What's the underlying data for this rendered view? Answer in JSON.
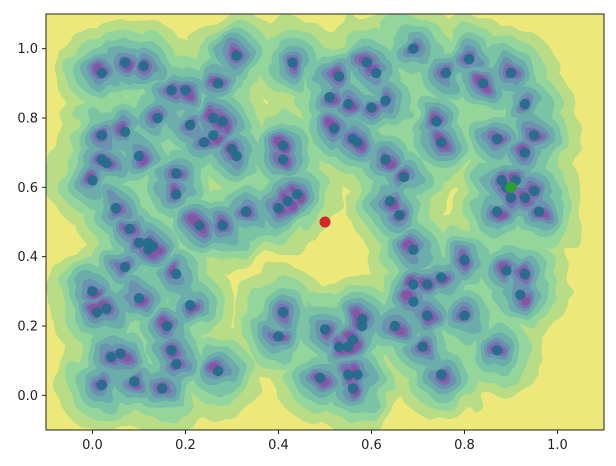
{
  "chart_data": {
    "type": "scatter",
    "title": "",
    "xlabel": "",
    "ylabel": "",
    "xlim": [
      -0.1,
      1.1
    ],
    "ylim": [
      -0.1,
      1.1
    ],
    "x_ticks": [
      "0.0",
      "0.2",
      "0.4",
      "0.6",
      "0.8",
      "1.0"
    ],
    "y_ticks": [
      "0.0",
      "0.2",
      "0.4",
      "0.6",
      "0.8",
      "1.0"
    ],
    "x_tick_values": [
      0.0,
      0.2,
      0.4,
      0.6,
      0.8,
      1.0
    ],
    "y_tick_values": [
      0.0,
      0.2,
      0.4,
      0.6,
      0.8,
      1.0
    ],
    "grid": false,
    "background": "filled contour (density), viridis colormap",
    "colors": {
      "contour_levels": [
        "#ece97a",
        "#b8dd86",
        "#8ed4a0",
        "#76c2a7",
        "#6aa9ad",
        "#6a8fb0",
        "#7b6bb0",
        "#8a4fa3"
      ],
      "points": "#1f6f8b",
      "highlight_green": "#2ca02c",
      "highlight_red": "#d62728"
    },
    "series": [
      {
        "values": [
          [
            0.02,
            0.93
          ],
          [
            0.07,
            0.96
          ],
          [
            0.11,
            0.95
          ],
          [
            0.17,
            0.88
          ],
          [
            0.2,
            0.88
          ],
          [
            0.27,
            0.9
          ],
          [
            0.3,
            0.71
          ],
          [
            0.14,
            0.8
          ],
          [
            0.21,
            0.78
          ],
          [
            0.24,
            0.73
          ],
          [
            0.26,
            0.75
          ],
          [
            0.26,
            0.8
          ],
          [
            0.28,
            0.79
          ],
          [
            0.31,
            0.69
          ],
          [
            0.02,
            0.75
          ],
          [
            0.02,
            0.68
          ],
          [
            0.03,
            0.67
          ],
          [
            0.07,
            0.76
          ],
          [
            0.1,
            0.69
          ],
          [
            0.0,
            0.62
          ],
          [
            0.05,
            0.54
          ],
          [
            0.18,
            0.58
          ],
          [
            0.18,
            0.64
          ],
          [
            0.23,
            0.49
          ],
          [
            0.33,
            0.53
          ],
          [
            0.08,
            0.48
          ],
          [
            0.1,
            0.44
          ],
          [
            0.12,
            0.44
          ],
          [
            0.12,
            0.42
          ],
          [
            0.13,
            0.43
          ],
          [
            0.07,
            0.37
          ],
          [
            0.18,
            0.35
          ],
          [
            0.0,
            0.3
          ],
          [
            0.01,
            0.24
          ],
          [
            0.03,
            0.25
          ],
          [
            0.1,
            0.28
          ],
          [
            0.16,
            0.2
          ],
          [
            0.17,
            0.13
          ],
          [
            0.21,
            0.26
          ],
          [
            0.04,
            0.11
          ],
          [
            0.06,
            0.12
          ],
          [
            0.09,
            0.04
          ],
          [
            0.15,
            0.02
          ],
          [
            0.18,
            0.09
          ],
          [
            0.27,
            0.07
          ],
          [
            0.02,
            0.03
          ],
          [
            0.41,
            0.72
          ],
          [
            0.41,
            0.68
          ],
          [
            0.42,
            0.56
          ],
          [
            0.44,
            0.58
          ],
          [
            0.4,
            0.54
          ],
          [
            0.51,
            0.86
          ],
          [
            0.52,
            0.77
          ],
          [
            0.43,
            0.96
          ],
          [
            0.53,
            0.92
          ],
          [
            0.59,
            0.96
          ],
          [
            0.61,
            0.93
          ],
          [
            0.55,
            0.84
          ],
          [
            0.6,
            0.83
          ],
          [
            0.63,
            0.85
          ],
          [
            0.63,
            0.68
          ],
          [
            0.57,
            0.73
          ],
          [
            0.56,
            0.74
          ],
          [
            0.67,
            0.63
          ],
          [
            0.69,
            1.0
          ],
          [
            0.74,
            0.79
          ],
          [
            0.75,
            0.73
          ],
          [
            0.81,
            0.97
          ],
          [
            0.76,
            0.93
          ],
          [
            0.84,
            0.9
          ],
          [
            0.87,
            0.74
          ],
          [
            0.9,
            0.93
          ],
          [
            0.93,
            0.84
          ],
          [
            0.95,
            0.75
          ],
          [
            0.91,
            0.62
          ],
          [
            0.93,
            0.7
          ],
          [
            0.88,
            0.62
          ],
          [
            0.89,
            0.6
          ],
          [
            0.9,
            0.57
          ],
          [
            0.93,
            0.57
          ],
          [
            0.95,
            0.59
          ],
          [
            0.87,
            0.53
          ],
          [
            0.96,
            0.53
          ],
          [
            0.89,
            0.36
          ],
          [
            0.92,
            0.29
          ],
          [
            0.93,
            0.35
          ],
          [
            0.87,
            0.13
          ],
          [
            0.64,
            0.56
          ],
          [
            0.66,
            0.52
          ],
          [
            0.69,
            0.42
          ],
          [
            0.72,
            0.32
          ],
          [
            0.75,
            0.34
          ],
          [
            0.8,
            0.39
          ],
          [
            0.8,
            0.23
          ],
          [
            0.58,
            0.22
          ],
          [
            0.58,
            0.2
          ],
          [
            0.65,
            0.2
          ],
          [
            0.69,
            0.27
          ],
          [
            0.69,
            0.32
          ],
          [
            0.72,
            0.23
          ],
          [
            0.71,
            0.14
          ],
          [
            0.5,
            0.19
          ],
          [
            0.53,
            0.14
          ],
          [
            0.55,
            0.14
          ],
          [
            0.56,
            0.16
          ],
          [
            0.55,
            0.06
          ],
          [
            0.57,
            0.06
          ],
          [
            0.49,
            0.05
          ],
          [
            0.56,
            0.02
          ],
          [
            0.75,
            0.06
          ],
          [
            0.41,
            0.24
          ],
          [
            0.4,
            0.17
          ],
          [
            0.31,
            0.98
          ],
          [
            0.28,
            0.49
          ]
        ]
      }
    ],
    "highlights": [
      {
        "x": 0.9,
        "y": 0.6,
        "color": "highlight_green"
      },
      {
        "x": 0.5,
        "y": 0.5,
        "color": "highlight_red"
      }
    ]
  }
}
